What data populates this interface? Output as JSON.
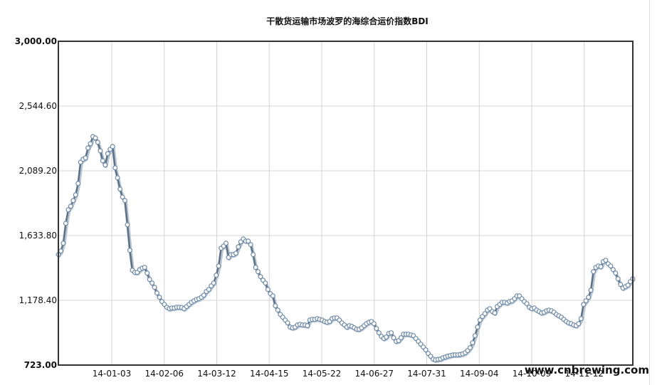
{
  "colors": {
    "line": "#5e7184",
    "line_shadow": "#b9c6d3",
    "point_fill": "#ffffff",
    "point_stroke": "#6f8aa6",
    "grid": "#d4d4d4",
    "frame": "#333333"
  },
  "watermark": "www.cnbrewing.com",
  "chart_data": {
    "type": "line",
    "title": "干散货运输市场波罗的海综合运价指数BDI",
    "xlabel": "",
    "ylabel": "",
    "ylim": [
      723.0,
      3000.0
    ],
    "yticks": [
      723.0,
      1178.4,
      1633.8,
      2089.2,
      2544.6,
      3000.0
    ],
    "ytick_labels": [
      "723.00",
      "1,178.40",
      "1,633.80",
      "2,089.20",
      "2,544.60",
      "3,000.00"
    ],
    "xtick_labels": [
      "14-01-03",
      "14-02-06",
      "14-03-12",
      "14-04-15",
      "14-05-22",
      "14-06-27",
      "14-07-31",
      "14-09-04",
      "14-10-09",
      "14-11-12"
    ],
    "grid": true,
    "legend": "none",
    "series": [
      {
        "values": [
          1500,
          1525,
          1580,
          1720,
          1815,
          1840,
          1880,
          1920,
          2000,
          2150,
          2170,
          2180,
          2250,
          2280,
          2330,
          2320,
          2290,
          2230,
          2160,
          2130,
          2210,
          2240,
          2260,
          2110,
          2040,
          1960,
          1905,
          1880,
          1710,
          1530,
          1390,
          1375,
          1375,
          1395,
          1405,
          1410,
          1370,
          1325,
          1300,
          1270,
          1230,
          1200,
          1170,
          1150,
          1130,
          1120,
          1125,
          1125,
          1130,
          1130,
          1128,
          1120,
          1135,
          1150,
          1165,
          1175,
          1185,
          1190,
          1200,
          1215,
          1240,
          1255,
          1280,
          1300,
          1355,
          1420,
          1545,
          1560,
          1580,
          1480,
          1500,
          1500,
          1510,
          1555,
          1590,
          1610,
          1595,
          1595,
          1570,
          1500,
          1410,
          1380,
          1345,
          1320,
          1300,
          1255,
          1225,
          1210,
          1140,
          1110,
          1080,
          1060,
          1040,
          1020,
          990,
          985,
          990,
          1005,
          1010,
          1005,
          1005,
          1000,
          1040,
          1045,
          1045,
          1050,
          1045,
          1040,
          1030,
          1025,
          1030,
          1050,
          1055,
          1055,
          1040,
          1020,
          1005,
          990,
          1000,
          995,
          985,
          975,
          975,
          985,
          1000,
          1015,
          1025,
          1030,
          1015,
          980,
          950,
          925,
          910,
          920,
          945,
          950,
          915,
          890,
          895,
          915,
          940,
          940,
          940,
          935,
          930,
          910,
          890,
          870,
          850,
          830,
          805,
          785,
          765,
          760,
          763,
          766,
          775,
          780,
          786,
          790,
          794,
          795,
          795,
          798,
          802,
          810,
          825,
          845,
          880,
          930,
          990,
          1040,
          1065,
          1085,
          1110,
          1120,
          1100,
          1090,
          1135,
          1150,
          1165,
          1165,
          1160,
          1170,
          1175,
          1190,
          1210,
          1210,
          1190,
          1170,
          1155,
          1130,
          1120,
          1125,
          1110,
          1100,
          1090,
          1095,
          1105,
          1110,
          1105,
          1095,
          1080,
          1070,
          1060,
          1045,
          1030,
          1020,
          1015,
          1005,
          1000,
          1015,
          1050,
          1150,
          1175,
          1200,
          1250,
          1380,
          1410,
          1420,
          1415,
          1450,
          1460,
          1435,
          1420,
          1395,
          1370,
          1330,
          1290,
          1265,
          1275,
          1285,
          1310,
          1330
        ]
      }
    ]
  }
}
